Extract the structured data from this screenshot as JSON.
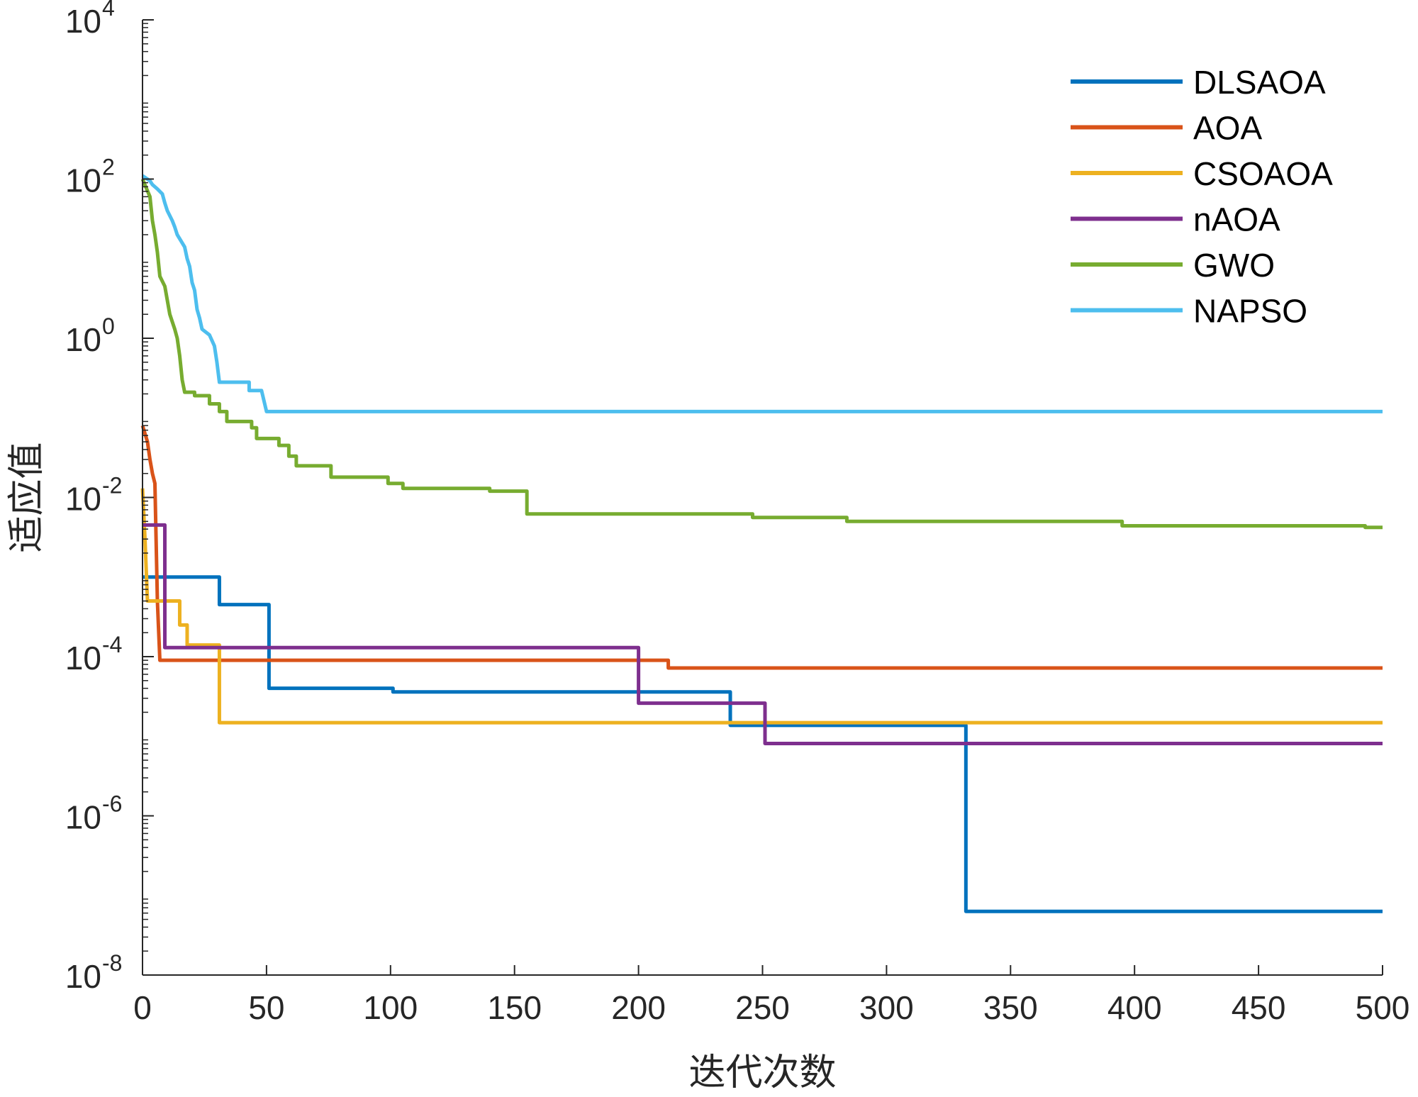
{
  "chart_data": {
    "type": "line",
    "title": "",
    "xlabel": "迭代次数",
    "ylabel": "适应值",
    "xlim": [
      0,
      500
    ],
    "ylim": [
      1e-08,
      10000
    ],
    "yscale": "log",
    "xticks": [
      0,
      50,
      100,
      150,
      200,
      250,
      300,
      350,
      400,
      450,
      500
    ],
    "yticks": [
      {
        "exp": -8,
        "base": "10",
        "sup": "-8"
      },
      {
        "exp": -6,
        "base": "10",
        "sup": "-6"
      },
      {
        "exp": -4,
        "base": "10",
        "sup": "-4"
      },
      {
        "exp": -2,
        "base": "10",
        "sup": "-2"
      },
      {
        "exp": 0,
        "base": "10",
        "sup": "0"
      },
      {
        "exp": 2,
        "base": "10",
        "sup": "2"
      },
      {
        "exp": 4,
        "base": "10",
        "sup": "4"
      }
    ],
    "grid": false,
    "legend_position": "top-right",
    "series": [
      {
        "name": "DLSAOA",
        "color": "#0072BD",
        "points": [
          [
            0,
            0.001
          ],
          [
            31,
            0.001
          ],
          [
            31,
            0.00045
          ],
          [
            51,
            0.00045
          ],
          [
            51,
            4e-05
          ],
          [
            101,
            4e-05
          ],
          [
            101,
            3.6e-05
          ],
          [
            237,
            3.6e-05
          ],
          [
            237,
            1.37e-05
          ],
          [
            332,
            1.37e-05
          ],
          [
            332,
            6.3e-08
          ],
          [
            500,
            6.3e-08
          ]
        ]
      },
      {
        "name": "AOA",
        "color": "#D95319",
        "points": [
          [
            0,
            0.08
          ],
          [
            2,
            0.05
          ],
          [
            3,
            0.03
          ],
          [
            4,
            0.02
          ],
          [
            5,
            0.015
          ],
          [
            6,
            0.0005
          ],
          [
            7,
            9e-05
          ],
          [
            212,
            9e-05
          ],
          [
            212,
            7.2e-05
          ],
          [
            500,
            7.2e-05
          ]
        ]
      },
      {
        "name": "CSOAOA",
        "color": "#EDB120",
        "points": [
          [
            0,
            0.013
          ],
          [
            1,
            0.003
          ],
          [
            2,
            0.0005
          ],
          [
            15,
            0.0005
          ],
          [
            15,
            0.00025
          ],
          [
            18,
            0.00025
          ],
          [
            18,
            0.00014
          ],
          [
            31,
            0.00014
          ],
          [
            31,
            1.48e-05
          ],
          [
            500,
            1.48e-05
          ]
        ]
      },
      {
        "name": "nAOA",
        "color": "#7E2F8E",
        "points": [
          [
            0,
            0.0045
          ],
          [
            9,
            0.0045
          ],
          [
            9,
            0.00013
          ],
          [
            200,
            0.00013
          ],
          [
            200,
            2.6e-05
          ],
          [
            251,
            2.6e-05
          ],
          [
            251,
            8.1e-06
          ],
          [
            500,
            8.1e-06
          ]
        ]
      },
      {
        "name": "GWO",
        "color": "#77AC30",
        "points": [
          [
            0,
            100
          ],
          [
            3,
            60
          ],
          [
            4,
            30
          ],
          [
            5,
            20
          ],
          [
            6,
            12
          ],
          [
            7,
            6
          ],
          [
            9,
            4.5
          ],
          [
            10,
            3
          ],
          [
            11,
            2
          ],
          [
            13,
            1.3
          ],
          [
            14,
            1
          ],
          [
            15,
            0.6
          ],
          [
            16,
            0.3
          ],
          [
            17,
            0.21
          ],
          [
            21,
            0.21
          ],
          [
            21,
            0.19
          ],
          [
            27,
            0.19
          ],
          [
            27,
            0.15
          ],
          [
            31,
            0.15
          ],
          [
            31,
            0.12
          ],
          [
            34,
            0.12
          ],
          [
            34,
            0.09
          ],
          [
            44,
            0.09
          ],
          [
            44,
            0.075
          ],
          [
            46,
            0.075
          ],
          [
            46,
            0.055
          ],
          [
            55,
            0.055
          ],
          [
            55,
            0.045
          ],
          [
            59,
            0.045
          ],
          [
            59,
            0.033
          ],
          [
            62,
            0.033
          ],
          [
            62,
            0.025
          ],
          [
            76,
            0.025
          ],
          [
            76,
            0.018
          ],
          [
            99,
            0.018
          ],
          [
            99,
            0.015
          ],
          [
            105,
            0.015
          ],
          [
            105,
            0.013
          ],
          [
            140,
            0.013
          ],
          [
            140,
            0.012
          ],
          [
            155,
            0.012
          ],
          [
            155,
            0.0062
          ],
          [
            246,
            0.0062
          ],
          [
            246,
            0.0056
          ],
          [
            284,
            0.0056
          ],
          [
            284,
            0.005
          ],
          [
            395,
            0.005
          ],
          [
            395,
            0.0044
          ],
          [
            493,
            0.0044
          ],
          [
            493,
            0.0042
          ],
          [
            500,
            0.0042
          ]
        ]
      },
      {
        "name": "NAPSO",
        "color": "#4DBEEE",
        "points": [
          [
            0,
            110
          ],
          [
            3,
            95
          ],
          [
            4,
            85
          ],
          [
            6,
            75
          ],
          [
            8,
            65
          ],
          [
            9,
            50
          ],
          [
            10,
            40
          ],
          [
            12,
            30
          ],
          [
            13,
            25
          ],
          [
            14,
            20
          ],
          [
            17,
            14
          ],
          [
            18,
            10
          ],
          [
            19,
            8
          ],
          [
            20,
            5
          ],
          [
            21,
            4
          ],
          [
            22,
            2.3
          ],
          [
            23,
            1.8
          ],
          [
            24,
            1.3
          ],
          [
            27,
            1.1
          ],
          [
            29,
            0.8
          ],
          [
            30,
            0.5
          ],
          [
            31,
            0.28
          ],
          [
            43,
            0.28
          ],
          [
            43,
            0.22
          ],
          [
            48,
            0.22
          ],
          [
            50,
            0.12
          ],
          [
            500,
            0.12
          ]
        ]
      }
    ]
  }
}
